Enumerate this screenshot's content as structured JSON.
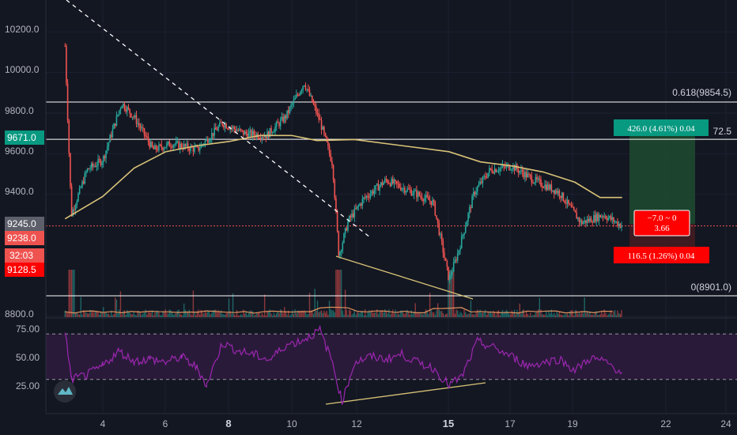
{
  "colors": {
    "background": "#131722",
    "up": "#26a69a",
    "down": "#ef5350",
    "ma": "#d8c277",
    "rsi": "#9c27b0",
    "rsi_band": "#2a1a3a",
    "target_zone": "#1f4b2f",
    "target_green": "#089981",
    "stop_red": "#ff0000",
    "price_line": "#ef5350",
    "trendline": "#d8c277",
    "fib_line": "#ffffff"
  },
  "price_axis": {
    "ticks": [
      "10200.0",
      "10000.0",
      "9800.0",
      "9600.0",
      "9400.0",
      "8800.0"
    ],
    "labels": {
      "last_price": "9245.0",
      "marker_green": "9671.0",
      "marker_red_1": "9238.0",
      "countdown": "32:03",
      "marker_red_2": "9128.5"
    }
  },
  "rsi_axis": {
    "ticks": [
      "75.00",
      "50.00",
      "25.00"
    ]
  },
  "time_axis": {
    "ticks": [
      "4",
      "6",
      "8",
      "10",
      "12",
      "15",
      "17",
      "19",
      "22",
      "24"
    ],
    "bold": [
      "8",
      "15"
    ]
  },
  "fib": {
    "level_618": "0.618(9854.5)",
    "level_partial": "72.5",
    "level_0": "0(8901.0)"
  },
  "position": {
    "target_label": "426.0 (4.61%) 0.04",
    "stop_label": "116.5 (1.26%) 0.04",
    "tooltip_line1": "−7.0 ~ 0",
    "tooltip_line2": "3.66"
  },
  "chart_data": [
    {
      "type": "candlestick",
      "title": "",
      "x_ticks": [
        "4",
        "6",
        "8",
        "10",
        "12",
        "15",
        "17",
        "19",
        "22",
        "24"
      ],
      "ylim": [
        8780,
        10280
      ],
      "y_ticks": [
        8800,
        9400,
        9600,
        9800,
        10000,
        10200
      ],
      "close_path": [
        [
          2.8,
          10130
        ],
        [
          3.0,
          9300
        ],
        [
          3.5,
          9520
        ],
        [
          4.0,
          9570
        ],
        [
          4.6,
          9850
        ],
        [
          5.0,
          9780
        ],
        [
          5.6,
          9620
        ],
        [
          6.2,
          9650
        ],
        [
          7.0,
          9620
        ],
        [
          7.8,
          9750
        ],
        [
          8.5,
          9700
        ],
        [
          9.2,
          9690
        ],
        [
          9.8,
          9780
        ],
        [
          10.4,
          9950
        ],
        [
          10.9,
          9760
        ],
        [
          11.3,
          9550
        ],
        [
          11.5,
          9100
        ],
        [
          11.8,
          9270
        ],
        [
          12.3,
          9380
        ],
        [
          13.0,
          9470
        ],
        [
          14.0,
          9400
        ],
        [
          14.5,
          9360
        ],
        [
          15.0,
          8980
        ],
        [
          15.3,
          9120
        ],
        [
          15.8,
          9410
        ],
        [
          16.3,
          9520
        ],
        [
          17.0,
          9540
        ],
        [
          17.7,
          9470
        ],
        [
          18.5,
          9410
        ],
        [
          19.2,
          9260
        ],
        [
          19.9,
          9300
        ],
        [
          20.5,
          9245
        ]
      ],
      "moving_average": [
        [
          2.8,
          9280
        ],
        [
          4.0,
          9390
        ],
        [
          5.0,
          9530
        ],
        [
          6.0,
          9610
        ],
        [
          7.0,
          9640
        ],
        [
          8.0,
          9660
        ],
        [
          9.0,
          9690
        ],
        [
          10.0,
          9690
        ],
        [
          10.8,
          9665
        ],
        [
          12.0,
          9670
        ],
        [
          13.5,
          9640
        ],
        [
          15.0,
          9610
        ],
        [
          16.0,
          9560
        ],
        [
          17.0,
          9540
        ],
        [
          18.0,
          9510
        ],
        [
          19.0,
          9460
        ],
        [
          19.8,
          9385
        ],
        [
          20.5,
          9385
        ]
      ],
      "horizontal_levels": [
        9854.5,
        9671.0,
        8901.0
      ],
      "current_price": 9245.0
    },
    {
      "type": "line",
      "title": "",
      "ylim": [
        5,
        85
      ],
      "y_ticks": [
        25,
        50,
        75
      ],
      "band": [
        30,
        70
      ],
      "series": [
        {
          "values": [
            [
              2.8,
              73
            ],
            [
              3.0,
              30
            ],
            [
              3.5,
              34
            ],
            [
              4.0,
              42
            ],
            [
              4.5,
              55
            ],
            [
              5.0,
              46
            ],
            [
              5.5,
              48
            ],
            [
              6.0,
              45
            ],
            [
              6.5,
              50
            ],
            [
              7.0,
              40
            ],
            [
              7.3,
              25
            ],
            [
              7.8,
              62
            ],
            [
              8.3,
              55
            ],
            [
              8.8,
              52
            ],
            [
              9.3,
              47
            ],
            [
              9.8,
              60
            ],
            [
              10.3,
              64
            ],
            [
              10.9,
              73
            ],
            [
              11.3,
              45
            ],
            [
              11.6,
              10
            ],
            [
              12.0,
              45
            ],
            [
              12.5,
              50
            ],
            [
              13.0,
              48
            ],
            [
              13.5,
              52
            ],
            [
              14.0,
              45
            ],
            [
              14.5,
              40
            ],
            [
              15.0,
              25
            ],
            [
              15.4,
              32
            ],
            [
              15.9,
              63
            ],
            [
              16.4,
              58
            ],
            [
              17.0,
              50
            ],
            [
              17.5,
              42
            ],
            [
              18.0,
              45
            ],
            [
              18.5,
              48
            ],
            [
              19.0,
              38
            ],
            [
              19.5,
              49
            ],
            [
              20.0,
              45
            ],
            [
              20.5,
              36
            ]
          ]
        }
      ]
    }
  ]
}
